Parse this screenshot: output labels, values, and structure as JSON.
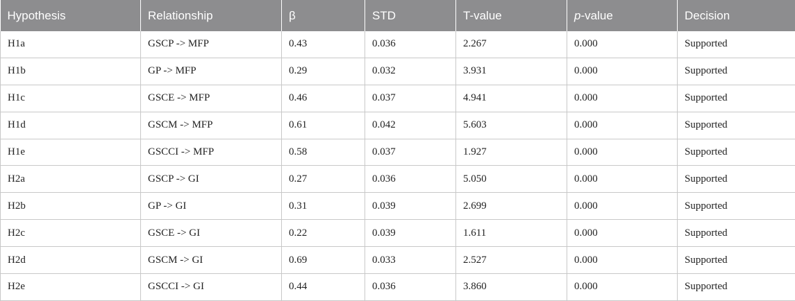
{
  "table": {
    "headers": {
      "hypothesis": "Hypothesis",
      "relationship": "Relationship",
      "beta": "β",
      "std": "STD",
      "tvalue": "T-value",
      "pvalue_italic": "p",
      "pvalue_suffix": "-value",
      "decision": "Decision"
    },
    "rows": [
      {
        "hypothesis": "H1a",
        "relationship": "GSCP -> MFP",
        "beta": "0.43",
        "std": "0.036",
        "t": "2.267",
        "p": "0.000",
        "decision": "Supported"
      },
      {
        "hypothesis": "H1b",
        "relationship": "GP -> MFP",
        "beta": "0.29",
        "std": "0.032",
        "t": "3.931",
        "p": "0.000",
        "decision": "Supported"
      },
      {
        "hypothesis": "H1c",
        "relationship": "GSCE -> MFP",
        "beta": "0.46",
        "std": "0.037",
        "t": "4.941",
        "p": "0.000",
        "decision": "Supported"
      },
      {
        "hypothesis": "H1d",
        "relationship": "GSCM -> MFP",
        "beta": "0.61",
        "std": "0.042",
        "t": "5.603",
        "p": "0.000",
        "decision": "Supported"
      },
      {
        "hypothesis": "H1e",
        "relationship": "GSCCI -> MFP",
        "beta": "0.58",
        "std": "0.037",
        "t": "1.927",
        "p": "0.000",
        "decision": "Supported"
      },
      {
        "hypothesis": "H2a",
        "relationship": "GSCP -> GI",
        "beta": "0.27",
        "std": "0.036",
        "t": "5.050",
        "p": "0.000",
        "decision": "Supported"
      },
      {
        "hypothesis": "H2b",
        "relationship": "GP -> GI",
        "beta": "0.31",
        "std": "0.039",
        "t": "2.699",
        "p": "0.000",
        "decision": "Supported"
      },
      {
        "hypothesis": "H2c",
        "relationship": "GSCE -> GI",
        "beta": "0.22",
        "std": "0.039",
        "t": "1.611",
        "p": "0.000",
        "decision": "Supported"
      },
      {
        "hypothesis": "H2d",
        "relationship": "GSCM -> GI",
        "beta": "0.69",
        "std": "0.033",
        "t": "2.527",
        "p": "0.000",
        "decision": "Supported"
      },
      {
        "hypothesis": "H2e",
        "relationship": "GSCCI -> GI",
        "beta": "0.44",
        "std": "0.036",
        "t": "3.860",
        "p": "0.000",
        "decision": "Supported"
      }
    ]
  }
}
